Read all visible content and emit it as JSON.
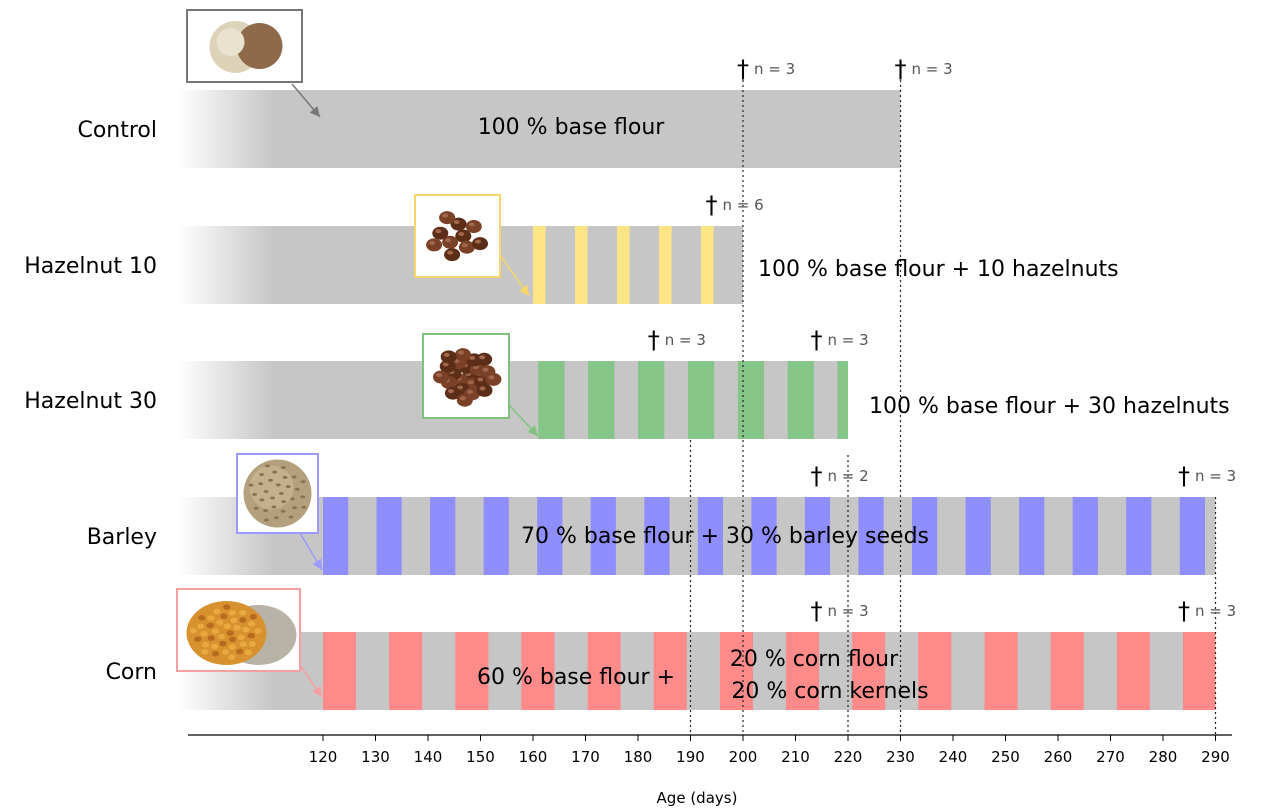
{
  "chart_data": {
    "type": "timeline-bar",
    "xlabel": "Age (days)",
    "xlim": [
      120,
      290
    ],
    "ticks": [
      120,
      130,
      140,
      150,
      160,
      170,
      180,
      190,
      200,
      210,
      220,
      230,
      240,
      250,
      260,
      270,
      280,
      290
    ],
    "reference_lines": [
      190,
      200,
      220,
      230,
      290
    ],
    "groups": [
      {
        "name": "Control",
        "end": 230,
        "stripe_color": null,
        "stripe_start": null,
        "description_lines": [
          "100 % base flour"
        ],
        "deaths": [
          {
            "day": 200,
            "label": "n = 3"
          },
          {
            "day": 230,
            "label": "n = 3"
          }
        ],
        "food_image": "base-flour-photo",
        "accent_color": "#777777"
      },
      {
        "name": "Hazelnut 10",
        "end": 200,
        "stripe_color": "#fde485",
        "stripe_start": 160,
        "stripe_period": 8,
        "stripe_width": 2.4,
        "description_lines": [
          "100 % base flour + 10 hazelnuts"
        ],
        "deaths": [
          {
            "day": 194,
            "label": "n = 6"
          }
        ],
        "food_image": "hazelnuts-10-photo",
        "accent_color": "#f5d66a"
      },
      {
        "name": "Hazelnut 30",
        "end": 220,
        "stripe_color": "#85c688",
        "stripe_start": 161,
        "stripe_period": 9.5,
        "stripe_width": 5,
        "description_lines": [
          "100 % base flour + 30 hazelnuts"
        ],
        "deaths": [
          {
            "day": 183,
            "label": "n = 3"
          },
          {
            "day": 214,
            "label": "n = 3"
          }
        ],
        "food_image": "hazelnuts-30-photo",
        "accent_color": "#7fc27f"
      },
      {
        "name": "Barley",
        "end": 290,
        "stripe_color": "#8f8eff",
        "stripe_start": 120,
        "stripe_period": 10.2,
        "stripe_width": 4.8,
        "description_lines": [
          "70 % base flour + 30 % barley seeds"
        ],
        "deaths": [
          {
            "day": 214,
            "label": "n = 2"
          },
          {
            "day": 284,
            "label": "n = 3"
          }
        ],
        "food_image": "barley-photo",
        "accent_color": "#9a9aff"
      },
      {
        "name": "Corn",
        "end": 290,
        "stripe_color": "#ff8a8a",
        "stripe_start": 120,
        "stripe_period": 12.6,
        "stripe_width": 6.3,
        "description_lines": [
          "60 % base flour +",
          "20 % corn flour",
          "20 % corn kernels"
        ],
        "deaths": [
          {
            "day": 214,
            "label": "n = 3"
          },
          {
            "day": 284,
            "label": "n = 3"
          }
        ],
        "food_image": "corn-photo",
        "accent_color": "#f5a0a0"
      }
    ],
    "death_symbol": "†"
  }
}
